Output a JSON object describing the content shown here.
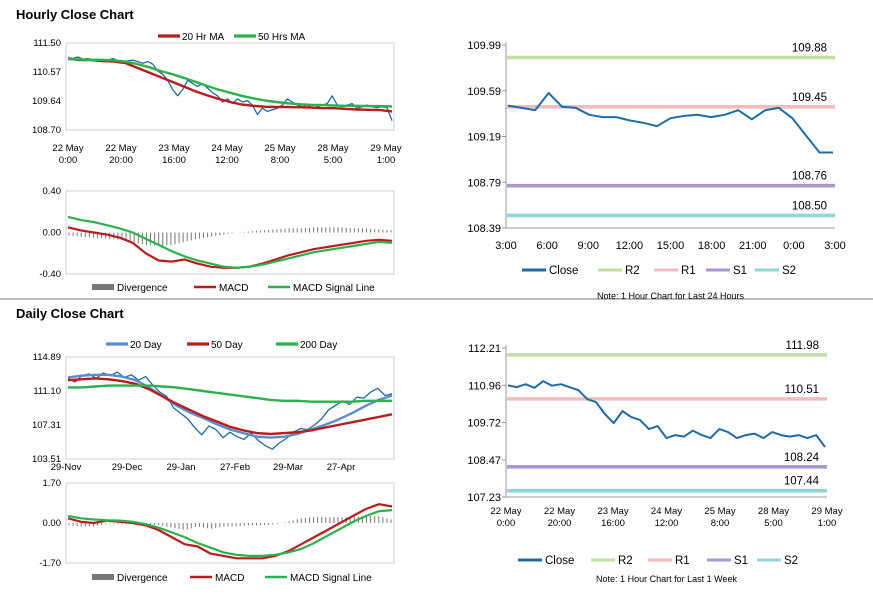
{
  "hourly_title": "Hourly Close Chart",
  "daily_title": "Daily Close Chart",
  "colors": {
    "close": "#1f6aa7",
    "ma20": "#b81c1c",
    "ma50": "#2bb24c",
    "blue_ma": "#5b8bd0",
    "r2": "#bfe0a0",
    "r1": "#f0bcbc",
    "s1": "#a898cc",
    "s2": "#92d4dc",
    "divergence": "#777777"
  },
  "chart_data": [
    {
      "id": "hourly_price",
      "type": "line",
      "legend": [
        "20 Hr MA",
        "50 Hrs MA"
      ],
      "x_ticks": [
        "22 May 0:00",
        "22 May 20:00",
        "23 May 16:00",
        "24 May 12:00",
        "25 May 8:00",
        "28 May 5:00",
        "29 May 1:00"
      ],
      "y_ticks": [
        "111.50",
        "110.57",
        "109.64",
        "108.70"
      ],
      "ylim": [
        108.7,
        111.5
      ],
      "series": [
        {
          "name": "Close",
          "values": [
            111.02,
            111.0,
            111.05,
            110.98,
            111.0,
            110.95,
            110.98,
            110.9,
            110.95,
            111.0,
            110.92,
            110.88,
            110.92,
            110.95,
            110.9,
            110.85,
            110.9,
            110.82,
            110.6,
            110.5,
            110.3,
            110.0,
            109.8,
            110.0,
            110.3,
            110.2,
            110.1,
            110.2,
            110.05,
            109.9,
            109.8,
            109.6,
            109.7,
            109.55,
            109.7,
            109.6,
            109.65,
            109.5,
            109.2,
            109.4,
            109.3,
            109.35,
            109.4,
            109.5,
            109.7,
            109.6,
            109.5,
            109.45,
            109.5,
            109.4,
            109.45,
            109.5,
            109.55,
            109.8,
            109.5,
            109.45,
            109.5,
            109.55,
            109.4,
            109.45,
            109.5,
            109.45,
            109.42,
            109.45,
            109.42,
            109.0
          ]
        },
        {
          "name": "20 Hr MA",
          "values": [
            111.0,
            110.95,
            110.95,
            110.92,
            110.9,
            110.85,
            110.7,
            110.55,
            110.4,
            110.25,
            110.1,
            109.95,
            109.82,
            109.7,
            109.6,
            109.52,
            109.48,
            109.45,
            109.44,
            109.44,
            109.43,
            109.42,
            109.4,
            109.4,
            109.38,
            109.36,
            109.35,
            109.34,
            109.3
          ]
        },
        {
          "name": "50 Hrs MA",
          "values": [
            110.98,
            110.97,
            110.96,
            110.96,
            110.94,
            110.9,
            110.82,
            110.72,
            110.6,
            110.5,
            110.38,
            110.25,
            110.12,
            110.0,
            109.9,
            109.8,
            109.72,
            109.65,
            109.6,
            109.56,
            109.53,
            109.51,
            109.5,
            109.49,
            109.48,
            109.48,
            109.47,
            109.47,
            109.46
          ]
        }
      ]
    },
    {
      "id": "hourly_macd",
      "type": "line",
      "legend": [
        "Divergence",
        "MACD",
        "MACD Signal Line"
      ],
      "y_ticks": [
        "0.40",
        "0.00",
        "-0.40"
      ],
      "ylim": [
        -0.4,
        0.4
      ],
      "series": [
        {
          "name": "MACD",
          "values": [
            0.05,
            0.02,
            0.0,
            -0.02,
            -0.05,
            -0.1,
            -0.2,
            -0.27,
            -0.28,
            -0.26,
            -0.3,
            -0.33,
            -0.34,
            -0.34,
            -0.33,
            -0.3,
            -0.26,
            -0.22,
            -0.19,
            -0.16,
            -0.14,
            -0.12,
            -0.1,
            -0.08,
            -0.07,
            -0.08
          ]
        },
        {
          "name": "MACD Signal Line",
          "values": [
            0.15,
            0.12,
            0.1,
            0.07,
            0.04,
            0.0,
            -0.06,
            -0.12,
            -0.18,
            -0.23,
            -0.27,
            -0.3,
            -0.33,
            -0.34,
            -0.33,
            -0.31,
            -0.28,
            -0.25,
            -0.22,
            -0.19,
            -0.17,
            -0.15,
            -0.13,
            -0.11,
            -0.09,
            -0.1
          ]
        },
        {
          "name": "Divergence",
          "values": [
            -0.03,
            -0.04,
            -0.05,
            -0.06,
            -0.07,
            -0.09,
            -0.12,
            -0.13,
            -0.12,
            -0.09,
            -0.06,
            -0.04,
            -0.02,
            0.0,
            0.01,
            0.02,
            0.03,
            0.04,
            0.04,
            0.05,
            0.05,
            0.05,
            0.04,
            0.04,
            0.03,
            0.02
          ]
        }
      ]
    },
    {
      "id": "hourly_levels",
      "type": "line",
      "x_ticks": [
        "3:00",
        "6:00",
        "9:00",
        "12:00",
        "15:00",
        "18:00",
        "21:00",
        "0:00",
        "3:00"
      ],
      "y_ticks": [
        "109.99",
        "109.59",
        "109.19",
        "108.79",
        "108.39"
      ],
      "ylim": [
        108.39,
        109.99
      ],
      "levels": [
        {
          "name": "R2",
          "value": 109.88,
          "label": "109.88"
        },
        {
          "name": "R1",
          "value": 109.45,
          "label": "109.45"
        },
        {
          "name": "S1",
          "value": 108.76,
          "label": "108.76"
        },
        {
          "name": "S2",
          "value": 108.5,
          "label": "108.50"
        }
      ],
      "series": [
        {
          "name": "Close",
          "values": [
            109.46,
            109.44,
            109.42,
            109.57,
            109.45,
            109.44,
            109.38,
            109.36,
            109.36,
            109.33,
            109.31,
            109.28,
            109.35,
            109.37,
            109.38,
            109.36,
            109.38,
            109.42,
            109.34,
            109.42,
            109.44,
            109.35,
            109.2,
            109.05,
            109.05
          ]
        }
      ],
      "legend": [
        "Close",
        "R2",
        "R1",
        "S1",
        "S2"
      ],
      "note": "Note: 1 Hour Chart for Last 24 Hours"
    },
    {
      "id": "daily_price",
      "type": "line",
      "legend": [
        "20 Day",
        "50 Day",
        "200 Day"
      ],
      "x_ticks": [
        "29-Nov",
        "29-Dec",
        "29-Jan",
        "27-Feb",
        "29-Mar",
        "27-Apr"
      ],
      "y_ticks": [
        "114.89",
        "111.10",
        "107.31",
        "103.51"
      ],
      "ylim": [
        103.51,
        114.89
      ],
      "series": [
        {
          "name": "Close",
          "values": [
            112.5,
            112.1,
            112.8,
            113.0,
            112.5,
            113.1,
            112.8,
            113.2,
            112.6,
            112.9,
            112.3,
            112.7,
            111.8,
            111.0,
            110.5,
            109.2,
            108.6,
            108.0,
            107.0,
            106.2,
            107.2,
            106.8,
            105.9,
            106.5,
            106.0,
            105.7,
            106.4,
            105.6,
            105.0,
            104.6,
            105.3,
            105.8,
            106.5,
            106.9,
            106.8,
            107.3,
            108.0,
            109.0,
            109.5,
            110.0,
            109.6,
            110.4,
            110.3,
            111.0,
            111.4,
            110.6,
            110.8
          ]
        },
        {
          "name": "20 Day",
          "values": [
            112.6,
            112.8,
            112.9,
            112.9,
            112.7,
            112.3,
            111.5,
            110.5,
            109.5,
            108.7,
            108.1,
            107.4,
            106.8,
            106.4,
            106.0,
            105.9,
            106.0,
            106.3,
            106.8,
            107.3,
            107.9,
            108.6,
            109.4,
            110.1,
            110.6
          ]
        },
        {
          "name": "50 Day",
          "values": [
            112.3,
            112.4,
            112.5,
            112.4,
            112.2,
            111.9,
            111.3,
            110.5,
            109.7,
            109.0,
            108.3,
            107.7,
            107.1,
            106.7,
            106.4,
            106.3,
            106.4,
            106.5,
            106.7,
            107.0,
            107.3,
            107.6,
            107.9,
            108.2,
            108.5
          ]
        },
        {
          "name": "200 Day",
          "values": [
            111.5,
            111.5,
            111.6,
            111.7,
            111.7,
            111.7,
            111.7,
            111.6,
            111.5,
            111.3,
            111.1,
            110.9,
            110.7,
            110.5,
            110.3,
            110.1,
            110.0,
            110.0,
            109.9,
            109.9,
            109.9,
            109.9,
            110.0,
            110.0,
            110.0
          ]
        }
      ]
    },
    {
      "id": "daily_macd",
      "type": "line",
      "legend": [
        "Divergence",
        "MACD",
        "MACD Signal Line"
      ],
      "y_ticks": [
        "1.70",
        "0.00",
        "-1.70"
      ],
      "ylim": [
        -1.7,
        1.7
      ],
      "series": [
        {
          "name": "MACD",
          "values": [
            0.2,
            0.05,
            0.0,
            0.1,
            0.05,
            0.0,
            -0.1,
            -0.3,
            -0.6,
            -0.9,
            -1.0,
            -1.3,
            -1.4,
            -1.5,
            -1.5,
            -1.5,
            -1.4,
            -1.2,
            -0.9,
            -0.6,
            -0.3,
            0.0,
            0.3,
            0.6,
            0.8,
            0.7
          ]
        },
        {
          "name": "MACD Signal Line",
          "values": [
            0.3,
            0.2,
            0.15,
            0.12,
            0.1,
            0.05,
            -0.05,
            -0.2,
            -0.4,
            -0.6,
            -0.85,
            -1.05,
            -1.25,
            -1.35,
            -1.4,
            -1.4,
            -1.35,
            -1.25,
            -1.1,
            -0.85,
            -0.55,
            -0.25,
            0.05,
            0.3,
            0.5,
            0.55
          ]
        },
        {
          "name": "Divergence",
          "values": [
            -0.1,
            -0.15,
            -0.15,
            -0.02,
            -0.05,
            -0.05,
            -0.05,
            -0.1,
            -0.2,
            -0.3,
            -0.15,
            -0.25,
            -0.15,
            -0.15,
            -0.1,
            -0.1,
            -0.05,
            0.05,
            0.2,
            0.25,
            0.25,
            0.25,
            0.25,
            0.3,
            0.3,
            0.15
          ]
        }
      ]
    },
    {
      "id": "daily_levels",
      "type": "line",
      "x_ticks": [
        "22 May 0:00",
        "22 May 20:00",
        "23 May 16:00",
        "24 May 12:00",
        "25 May 8:00",
        "28 May 5:00",
        "29 May 1:00"
      ],
      "y_ticks": [
        "112.21",
        "110.96",
        "109.72",
        "108.47",
        "107.23"
      ],
      "ylim": [
        107.23,
        112.21
      ],
      "levels": [
        {
          "name": "R2",
          "value": 111.98,
          "label": "111.98"
        },
        {
          "name": "R1",
          "value": 110.51,
          "label": "110.51"
        },
        {
          "name": "S1",
          "value": 108.24,
          "label": "108.24"
        },
        {
          "name": "S2",
          "value": 107.44,
          "label": "107.44"
        }
      ],
      "series": [
        {
          "name": "Close",
          "values": [
            110.96,
            110.9,
            111.0,
            110.88,
            111.1,
            110.95,
            111.0,
            110.9,
            110.8,
            110.5,
            110.4,
            110.0,
            109.7,
            110.1,
            109.9,
            109.8,
            109.5,
            109.6,
            109.2,
            109.3,
            109.25,
            109.45,
            109.3,
            109.2,
            109.5,
            109.4,
            109.2,
            109.3,
            109.35,
            109.2,
            109.4,
            109.3,
            109.25,
            109.3,
            109.2,
            109.3,
            108.9
          ]
        }
      ],
      "legend": [
        "Close",
        "R2",
        "R1",
        "S1",
        "S2"
      ],
      "note": "Note: 1 Hour Chart for Last 1 Week"
    }
  ]
}
